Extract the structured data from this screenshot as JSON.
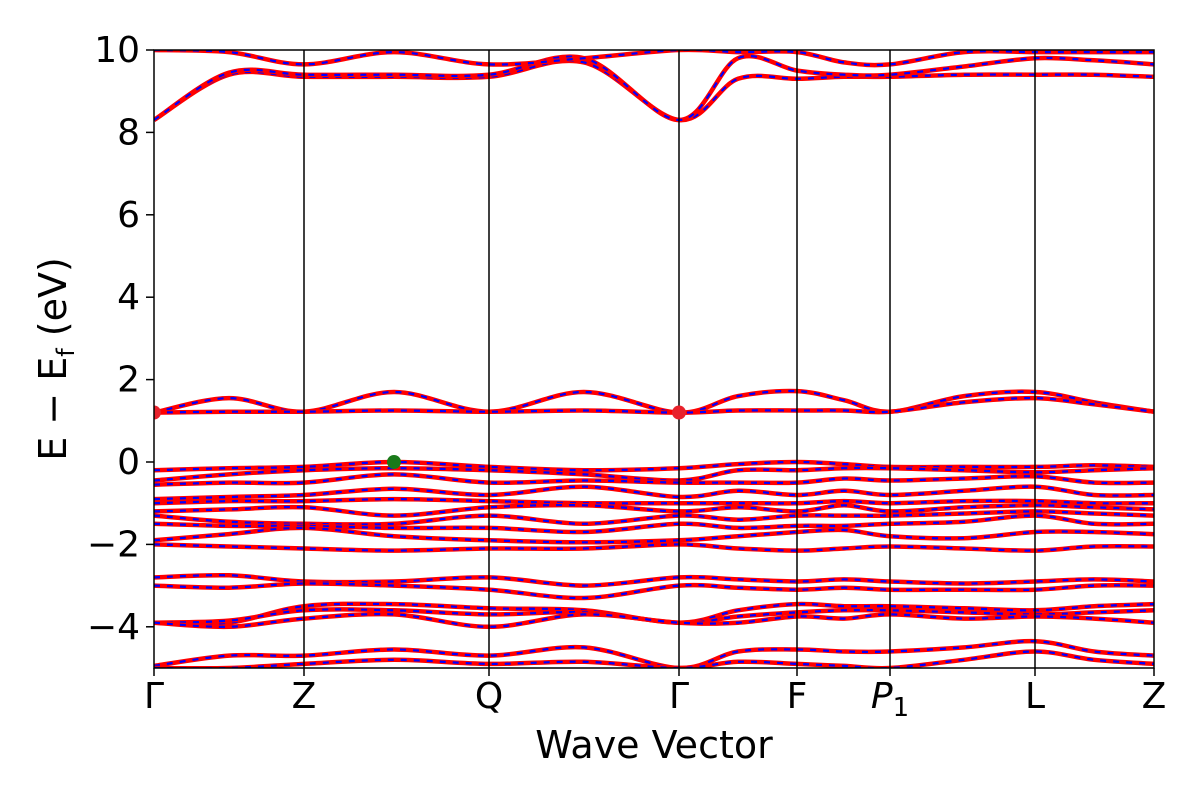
{
  "chart_data": {
    "type": "line",
    "title": "",
    "xlabel": "Wave Vector",
    "ylabel_parts": {
      "main": "E − E",
      "sub": "f",
      "unit": " (eV)"
    },
    "ylim": [
      -5,
      10
    ],
    "yticks": [
      -4,
      -2,
      0,
      2,
      4,
      6,
      8,
      10
    ],
    "ytick_labels": [
      "−4",
      "−2",
      "0",
      "2",
      "4",
      "6",
      "8",
      "10"
    ],
    "k_path": [
      {
        "label": "Γ",
        "k": 0.0
      },
      {
        "label": "Z",
        "k": 0.15
      },
      {
        "label": "Q",
        "k": 0.335
      },
      {
        "label": "Γ",
        "k": 0.525
      },
      {
        "label": "F",
        "k": 0.643
      },
      {
        "label": "P1",
        "k": 0.736
      },
      {
        "label": "L",
        "k": 0.881
      },
      {
        "label": "Z",
        "k": 1.0
      }
    ],
    "series_colors": {
      "band_solid": "#ff0000",
      "band_dashed": "#0000ff"
    },
    "grid": false,
    "bands": [
      {
        "k": [
          0,
          0.075,
          0.15,
          0.24,
          0.335,
          0.43,
          0.525,
          0.584,
          0.643,
          0.69,
          0.736,
          0.81,
          0.881,
          0.94,
          1.0
        ],
        "E": [
          8.3,
          9.4,
          9.35,
          9.35,
          9.35,
          9.7,
          8.3,
          9.3,
          9.3,
          9.35,
          9.35,
          9.4,
          9.4,
          9.4,
          9.35
        ]
      },
      {
        "k": [
          0,
          0.075,
          0.15,
          0.24,
          0.335,
          0.43,
          0.525,
          0.584,
          0.643,
          0.69,
          0.736,
          0.81,
          0.881,
          0.94,
          1.0
        ],
        "E": [
          8.3,
          9.45,
          9.4,
          9.4,
          9.4,
          9.8,
          8.3,
          9.8,
          9.5,
          9.4,
          9.4,
          9.6,
          9.8,
          9.75,
          9.65
        ]
      },
      {
        "k": [
          0,
          0.075,
          0.15,
          0.24,
          0.335,
          0.43,
          0.525,
          0.584,
          0.643,
          0.69,
          0.736,
          0.81,
          0.881,
          0.94,
          1.0
        ],
        "E": [
          10.0,
          9.95,
          9.65,
          9.95,
          9.65,
          9.8,
          10.0,
          9.95,
          9.95,
          9.7,
          9.65,
          9.95,
          9.95,
          9.95,
          9.95
        ]
      },
      {
        "k": [
          0,
          0.075,
          0.15,
          0.24,
          0.335,
          0.43,
          0.525,
          0.584,
          0.643,
          0.69,
          0.736,
          0.81,
          0.881,
          0.94,
          1.0
        ],
        "E": [
          1.2,
          1.55,
          1.22,
          1.7,
          1.22,
          1.7,
          1.2,
          1.6,
          1.72,
          1.5,
          1.22,
          1.6,
          1.7,
          1.45,
          1.22
        ]
      },
      {
        "k": [
          0,
          0.075,
          0.15,
          0.24,
          0.335,
          0.43,
          0.525,
          0.584,
          0.643,
          0.69,
          0.736,
          0.81,
          0.881,
          0.94,
          1.0
        ],
        "E": [
          1.2,
          1.22,
          1.22,
          1.25,
          1.22,
          1.25,
          1.2,
          1.25,
          1.25,
          1.25,
          1.22,
          1.45,
          1.55,
          1.4,
          1.22
        ]
      },
      {
        "k": [
          0,
          0.075,
          0.15,
          0.24,
          0.335,
          0.43,
          0.525,
          0.584,
          0.643,
          0.69,
          0.736,
          0.81,
          0.881,
          0.94,
          1.0
        ],
        "E": [
          -0.2,
          -0.15,
          -0.12,
          0.0,
          -0.12,
          -0.2,
          -0.15,
          -0.05,
          0.0,
          -0.05,
          -0.12,
          -0.12,
          -0.12,
          -0.08,
          -0.12
        ]
      },
      {
        "k": [
          0,
          0.075,
          0.15,
          0.24,
          0.335,
          0.43,
          0.525,
          0.584,
          0.643,
          0.69,
          0.736,
          0.81,
          0.881,
          0.94,
          1.0
        ],
        "E": [
          -0.45,
          -0.3,
          -0.2,
          -0.15,
          -0.2,
          -0.3,
          -0.45,
          -0.2,
          -0.2,
          -0.15,
          -0.15,
          -0.2,
          -0.25,
          -0.2,
          -0.15
        ]
      },
      {
        "k": [
          0,
          0.075,
          0.15,
          0.24,
          0.335,
          0.43,
          0.525,
          0.584,
          0.643,
          0.69,
          0.736,
          0.81,
          0.881,
          0.94,
          1.0
        ],
        "E": [
          -0.55,
          -0.5,
          -0.5,
          -0.3,
          -0.5,
          -0.45,
          -0.5,
          -0.5,
          -0.5,
          -0.4,
          -0.45,
          -0.4,
          -0.35,
          -0.5,
          -0.5
        ]
      },
      {
        "k": [
          0,
          0.075,
          0.15,
          0.24,
          0.335,
          0.43,
          0.525,
          0.584,
          0.643,
          0.69,
          0.736,
          0.81,
          0.881,
          0.94,
          1.0
        ],
        "E": [
          -0.9,
          -0.85,
          -0.8,
          -0.65,
          -0.8,
          -0.6,
          -0.85,
          -0.7,
          -0.8,
          -0.7,
          -0.8,
          -0.7,
          -0.6,
          -0.8,
          -0.8
        ]
      },
      {
        "k": [
          0,
          0.075,
          0.15,
          0.24,
          0.335,
          0.43,
          0.525,
          0.584,
          0.643,
          0.69,
          0.736,
          0.81,
          0.881,
          0.94,
          1.0
        ],
        "E": [
          -1.0,
          -0.95,
          -0.95,
          -0.9,
          -0.95,
          -1.0,
          -1.0,
          -1.0,
          -1.0,
          -0.95,
          -1.0,
          -0.95,
          -0.95,
          -1.0,
          -1.0
        ]
      },
      {
        "k": [
          0,
          0.075,
          0.15,
          0.24,
          0.335,
          0.43,
          0.525,
          0.584,
          0.643,
          0.69,
          0.736,
          0.81,
          0.881,
          0.94,
          1.0
        ],
        "E": [
          -1.2,
          -1.15,
          -1.1,
          -1.3,
          -1.1,
          -1.05,
          -1.2,
          -1.1,
          -1.2,
          -1.05,
          -1.2,
          -1.1,
          -1.05,
          -1.1,
          -1.15
        ]
      },
      {
        "k": [
          0,
          0.075,
          0.15,
          0.24,
          0.335,
          0.43,
          0.525,
          0.584,
          0.643,
          0.69,
          0.736,
          0.81,
          0.881,
          0.94,
          1.0
        ],
        "E": [
          -1.3,
          -1.45,
          -1.5,
          -1.5,
          -1.3,
          -1.5,
          -1.3,
          -1.4,
          -1.3,
          -1.3,
          -1.3,
          -1.25,
          -1.2,
          -1.25,
          -1.3
        ]
      },
      {
        "k": [
          0,
          0.075,
          0.15,
          0.24,
          0.335,
          0.43,
          0.525,
          0.584,
          0.643,
          0.69,
          0.736,
          0.81,
          0.881,
          0.94,
          1.0
        ],
        "E": [
          -1.5,
          -1.55,
          -1.55,
          -1.6,
          -1.6,
          -1.7,
          -1.5,
          -1.6,
          -1.55,
          -1.55,
          -1.5,
          -1.45,
          -1.3,
          -1.5,
          -1.5
        ]
      },
      {
        "k": [
          0,
          0.075,
          0.15,
          0.24,
          0.335,
          0.43,
          0.525,
          0.584,
          0.643,
          0.69,
          0.736,
          0.81,
          0.881,
          0.94,
          1.0
        ],
        "E": [
          -1.9,
          -1.75,
          -1.6,
          -1.8,
          -1.9,
          -1.95,
          -1.9,
          -1.8,
          -1.7,
          -1.65,
          -1.8,
          -1.85,
          -1.7,
          -1.7,
          -1.75
        ]
      },
      {
        "k": [
          0,
          0.075,
          0.15,
          0.24,
          0.335,
          0.43,
          0.525,
          0.584,
          0.643,
          0.69,
          0.736,
          0.81,
          0.881,
          0.94,
          1.0
        ],
        "E": [
          -2.0,
          -2.05,
          -2.1,
          -2.15,
          -2.1,
          -2.1,
          -2.0,
          -2.1,
          -2.15,
          -2.1,
          -2.05,
          -2.1,
          -2.15,
          -2.05,
          -2.05
        ]
      },
      {
        "k": [
          0,
          0.075,
          0.15,
          0.24,
          0.335,
          0.43,
          0.525,
          0.584,
          0.643,
          0.69,
          0.736,
          0.81,
          0.881,
          0.94,
          1.0
        ],
        "E": [
          -2.8,
          -2.75,
          -2.9,
          -2.9,
          -2.8,
          -3.0,
          -2.8,
          -2.85,
          -2.9,
          -2.85,
          -2.9,
          -2.95,
          -2.9,
          -2.85,
          -2.9
        ]
      },
      {
        "k": [
          0,
          0.075,
          0.15,
          0.24,
          0.335,
          0.43,
          0.525,
          0.584,
          0.643,
          0.69,
          0.736,
          0.81,
          0.881,
          0.94,
          1.0
        ],
        "E": [
          -3.0,
          -3.05,
          -2.95,
          -3.0,
          -3.1,
          -3.3,
          -3.0,
          -3.05,
          -3.1,
          -3.05,
          -3.1,
          -3.1,
          -3.1,
          -3.0,
          -3.0
        ]
      },
      {
        "k": [
          0,
          0.075,
          0.15,
          0.24,
          0.335,
          0.43,
          0.525,
          0.584,
          0.643,
          0.69,
          0.736,
          0.81,
          0.881,
          0.94,
          1.0
        ],
        "E": [
          -3.9,
          -3.9,
          -3.5,
          -3.45,
          -3.55,
          -3.6,
          -3.9,
          -3.6,
          -3.45,
          -3.5,
          -3.5,
          -3.55,
          -3.6,
          -3.5,
          -3.45
        ]
      },
      {
        "k": [
          0,
          0.075,
          0.15,
          0.24,
          0.335,
          0.43,
          0.525,
          0.584,
          0.643,
          0.69,
          0.736,
          0.81,
          0.881,
          0.94,
          1.0
        ],
        "E": [
          -3.9,
          -3.85,
          -3.6,
          -3.6,
          -3.7,
          -3.65,
          -3.9,
          -3.75,
          -3.65,
          -3.6,
          -3.6,
          -3.65,
          -3.7,
          -3.65,
          -3.6
        ]
      },
      {
        "k": [
          0,
          0.075,
          0.15,
          0.24,
          0.335,
          0.43,
          0.525,
          0.584,
          0.643,
          0.69,
          0.736,
          0.81,
          0.881,
          0.94,
          1.0
        ],
        "E": [
          -3.9,
          -4.0,
          -3.8,
          -3.7,
          -4.0,
          -3.7,
          -3.9,
          -3.9,
          -3.75,
          -3.8,
          -3.7,
          -3.8,
          -3.75,
          -3.8,
          -3.9
        ]
      },
      {
        "k": [
          0,
          0.075,
          0.15,
          0.24,
          0.335,
          0.43,
          0.525,
          0.584,
          0.643,
          0.69,
          0.736,
          0.81,
          0.881,
          0.94,
          1.0
        ],
        "E": [
          -4.95,
          -4.7,
          -4.7,
          -4.55,
          -4.7,
          -4.5,
          -5.0,
          -4.6,
          -4.55,
          -4.6,
          -4.6,
          -4.5,
          -4.35,
          -4.6,
          -4.7
        ]
      },
      {
        "k": [
          0,
          0.075,
          0.15,
          0.24,
          0.335,
          0.43,
          0.525,
          0.584,
          0.643,
          0.69,
          0.736,
          0.81,
          0.881,
          0.94,
          1.0
        ],
        "E": [
          -5.0,
          -5.0,
          -4.9,
          -4.8,
          -4.9,
          -4.85,
          -5.0,
          -4.85,
          -4.9,
          -4.95,
          -5.0,
          -4.8,
          -4.6,
          -4.8,
          -4.9
        ]
      }
    ],
    "markers": [
      {
        "k": 0.0,
        "E": 1.2,
        "color": "#e8212b"
      },
      {
        "k": 0.525,
        "E": 1.2,
        "color": "#e8212b"
      },
      {
        "k": 0.24,
        "E": 0.0,
        "color": "#1a7a1a"
      }
    ]
  }
}
